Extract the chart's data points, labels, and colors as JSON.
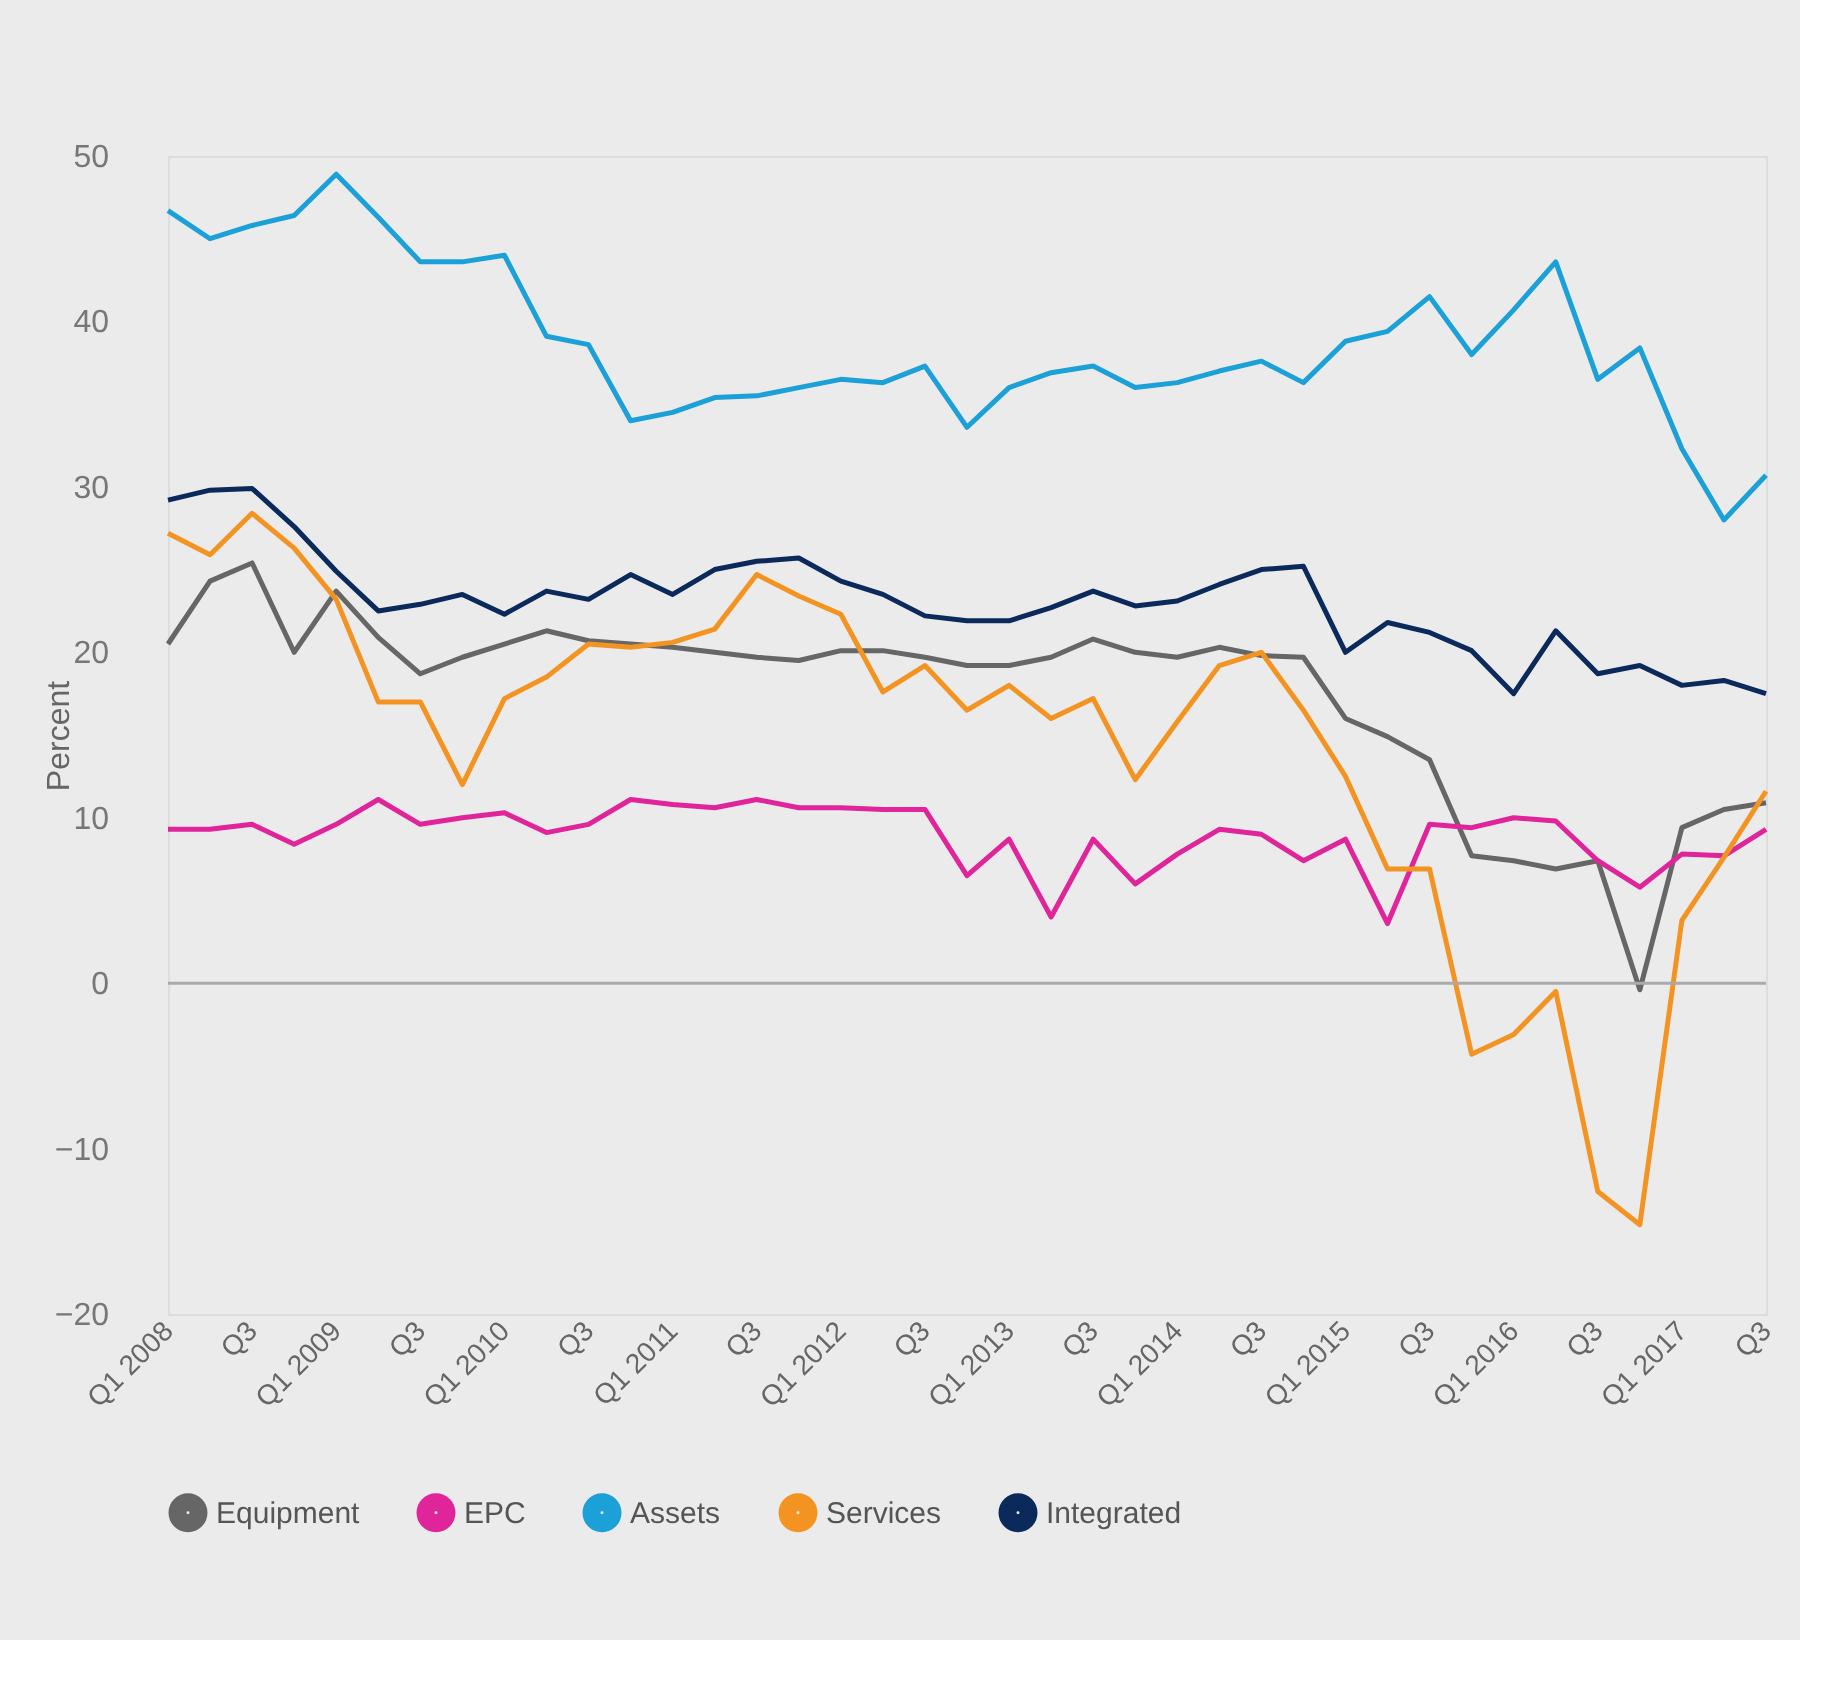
{
  "chart_data": {
    "type": "line",
    "ylabel": "Percent",
    "categories": [
      "Q1 2008",
      null,
      "Q3",
      null,
      "Q1 2009",
      null,
      "Q3",
      null,
      "Q1 2010",
      null,
      "Q3",
      null,
      "Q1 2011",
      null,
      "Q3",
      null,
      "Q1 2012",
      null,
      "Q3",
      null,
      "Q1 2013",
      null,
      "Q3",
      null,
      "Q1 2014",
      null,
      "Q3",
      null,
      "Q1 2015",
      null,
      "Q3",
      null,
      "Q1 2016",
      null,
      "Q3",
      null,
      "Q1 2017",
      null,
      "Q3"
    ],
    "series": [
      {
        "name": "Equipment",
        "color": "#666666",
        "values": [
          20.5,
          24.3,
          25.4,
          20.0,
          23.7,
          20.9,
          18.7,
          19.7,
          20.5,
          21.3,
          20.7,
          20.5,
          20.3,
          20.0,
          19.7,
          19.5,
          20.1,
          20.1,
          19.7,
          19.2,
          19.2,
          19.7,
          20.8,
          20.0,
          19.7,
          20.3,
          19.8,
          19.7,
          16.0,
          14.9,
          13.5,
          7.7,
          7.4,
          6.9,
          7.4,
          -0.4,
          9.4,
          10.5,
          10.9
        ]
      },
      {
        "name": "EPC",
        "color": "#e0249a",
        "values": [
          9.3,
          9.3,
          9.6,
          8.4,
          9.6,
          11.1,
          9.6,
          10.0,
          10.3,
          9.1,
          9.6,
          11.1,
          10.8,
          10.6,
          11.1,
          10.6,
          10.6,
          10.5,
          10.5,
          6.5,
          8.7,
          4.0,
          8.7,
          6.0,
          7.8,
          9.3,
          9.0,
          7.4,
          8.7,
          3.6,
          9.6,
          9.4,
          10.0,
          9.8,
          7.4,
          5.8,
          7.8,
          7.7,
          9.3
        ]
      },
      {
        "name": "Assets",
        "color": "#1ba0d8",
        "values": [
          46.7,
          45.0,
          45.8,
          46.4,
          48.9,
          46.3,
          43.6,
          43.6,
          44.0,
          39.1,
          38.6,
          34.0,
          34.5,
          35.4,
          35.5,
          36.0,
          36.5,
          36.3,
          37.3,
          33.6,
          36.0,
          36.9,
          37.3,
          36.0,
          36.3,
          37.0,
          37.6,
          36.3,
          38.8,
          39.4,
          41.5,
          38.0,
          40.7,
          43.6,
          36.5,
          38.4,
          32.3,
          28.0,
          30.7
        ]
      },
      {
        "name": "Services",
        "color": "#f39422",
        "values": [
          27.2,
          25.9,
          28.4,
          26.3,
          23.2,
          17.0,
          17.0,
          12.0,
          17.2,
          18.5,
          20.5,
          20.3,
          20.6,
          21.4,
          24.7,
          23.4,
          22.3,
          17.6,
          19.2,
          16.5,
          18.0,
          16.0,
          17.2,
          12.3,
          15.8,
          19.2,
          20.0,
          16.5,
          12.5,
          6.9,
          6.9,
          -4.3,
          -3.1,
          -0.5,
          -12.6,
          -14.6,
          3.8,
          7.6,
          11.6
        ]
      },
      {
        "name": "Integrated",
        "color": "#0b2a5b",
        "values": [
          29.2,
          29.8,
          29.9,
          27.6,
          24.9,
          22.5,
          22.9,
          23.5,
          22.3,
          23.7,
          23.2,
          24.7,
          23.5,
          25.0,
          25.5,
          25.7,
          24.3,
          23.5,
          22.2,
          21.9,
          21.9,
          22.7,
          23.7,
          22.8,
          23.1,
          24.1,
          25.0,
          25.2,
          20.0,
          21.8,
          21.2,
          20.1,
          17.5,
          21.3,
          18.7,
          19.2,
          18.0,
          18.3,
          17.5
        ]
      }
    ],
    "ylim": [
      -20,
      50
    ],
    "yticks": [
      -20,
      -10,
      0,
      10,
      20,
      30,
      40,
      50
    ],
    "ref_lines": [
      {
        "axis": "y",
        "value": 0,
        "label": null,
        "color": "#aaaaaa"
      }
    ],
    "grid": false,
    "legend": "bottom",
    "marker": "none",
    "line_style": "solid"
  }
}
